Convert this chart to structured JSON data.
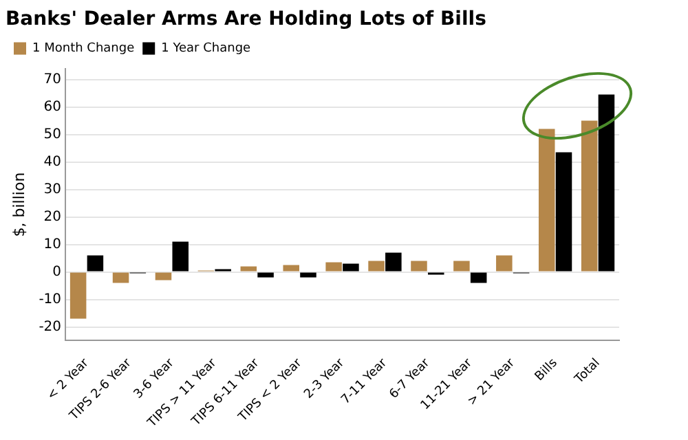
{
  "chart_data": {
    "type": "bar",
    "title": "Banks' Dealer Arms Are Holding Lots of Bills",
    "ylabel": "$, billion",
    "categories": [
      "< 2 Year",
      "TIPS 2-6 Year",
      "3-6 Year",
      "TIPS > 11 Year",
      "TIPS 6-11 Year",
      "TIPS < 2 Year",
      "2-3 Year",
      "7-11 Year",
      "6-7 Year",
      "11-21 Year",
      "> 21 Year",
      "Bills",
      "Total"
    ],
    "series": [
      {
        "name": "1 Month Change",
        "color": "#b5874a",
        "values": [
          -17,
          -4,
          -3,
          0.5,
          2,
          2.5,
          3.5,
          4,
          4,
          4,
          6,
          52,
          55
        ]
      },
      {
        "name": "1 Year Change",
        "color": "#000000",
        "values": [
          6,
          -0.5,
          11,
          1,
          -2,
          -2,
          3,
          7,
          -1,
          -4,
          -0.5,
          43.5,
          64.5
        ]
      }
    ],
    "ylim": [
      -25,
      74
    ],
    "yticks": [
      -20,
      -10,
      0,
      10,
      20,
      30,
      40,
      50,
      60,
      70
    ],
    "grid": "y",
    "legend": "top left"
  }
}
